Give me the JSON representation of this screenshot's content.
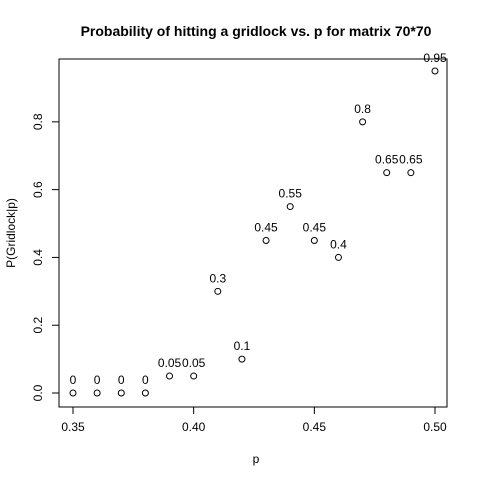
{
  "chart_data": {
    "type": "scatter",
    "title": "Probability of hitting a gridlock vs. p for matrix 70*70",
    "xlabel": "p",
    "ylabel": "P(Gridlock|p)",
    "xlim": [
      0.35,
      0.5
    ],
    "ylim": [
      0.0,
      0.95
    ],
    "xticks": [
      0.35,
      0.4,
      0.45,
      0.5
    ],
    "xtick_labels": [
      "0.35",
      "0.40",
      "0.45",
      "0.50"
    ],
    "yticks": [
      0.0,
      0.2,
      0.4,
      0.6,
      0.8
    ],
    "ytick_labels": [
      "0.0",
      "0.2",
      "0.4",
      "0.6",
      "0.8"
    ],
    "grid": false,
    "marker": "open-circle",
    "x": [
      0.35,
      0.36,
      0.37,
      0.38,
      0.39,
      0.4,
      0.41,
      0.42,
      0.43,
      0.44,
      0.45,
      0.46,
      0.47,
      0.48,
      0.49,
      0.5
    ],
    "y": [
      0,
      0,
      0,
      0,
      0.05,
      0.05,
      0.3,
      0.1,
      0.45,
      0.55,
      0.45,
      0.4,
      0.8,
      0.65,
      0.65,
      0.95
    ],
    "point_labels": [
      "0",
      "0",
      "0",
      "0",
      "0.05",
      "0.05",
      "0.3",
      "0.1",
      "0.45",
      "0.55",
      "0.45",
      "0.4",
      "0.8",
      "0.65",
      "0.65",
      "0.95"
    ]
  }
}
